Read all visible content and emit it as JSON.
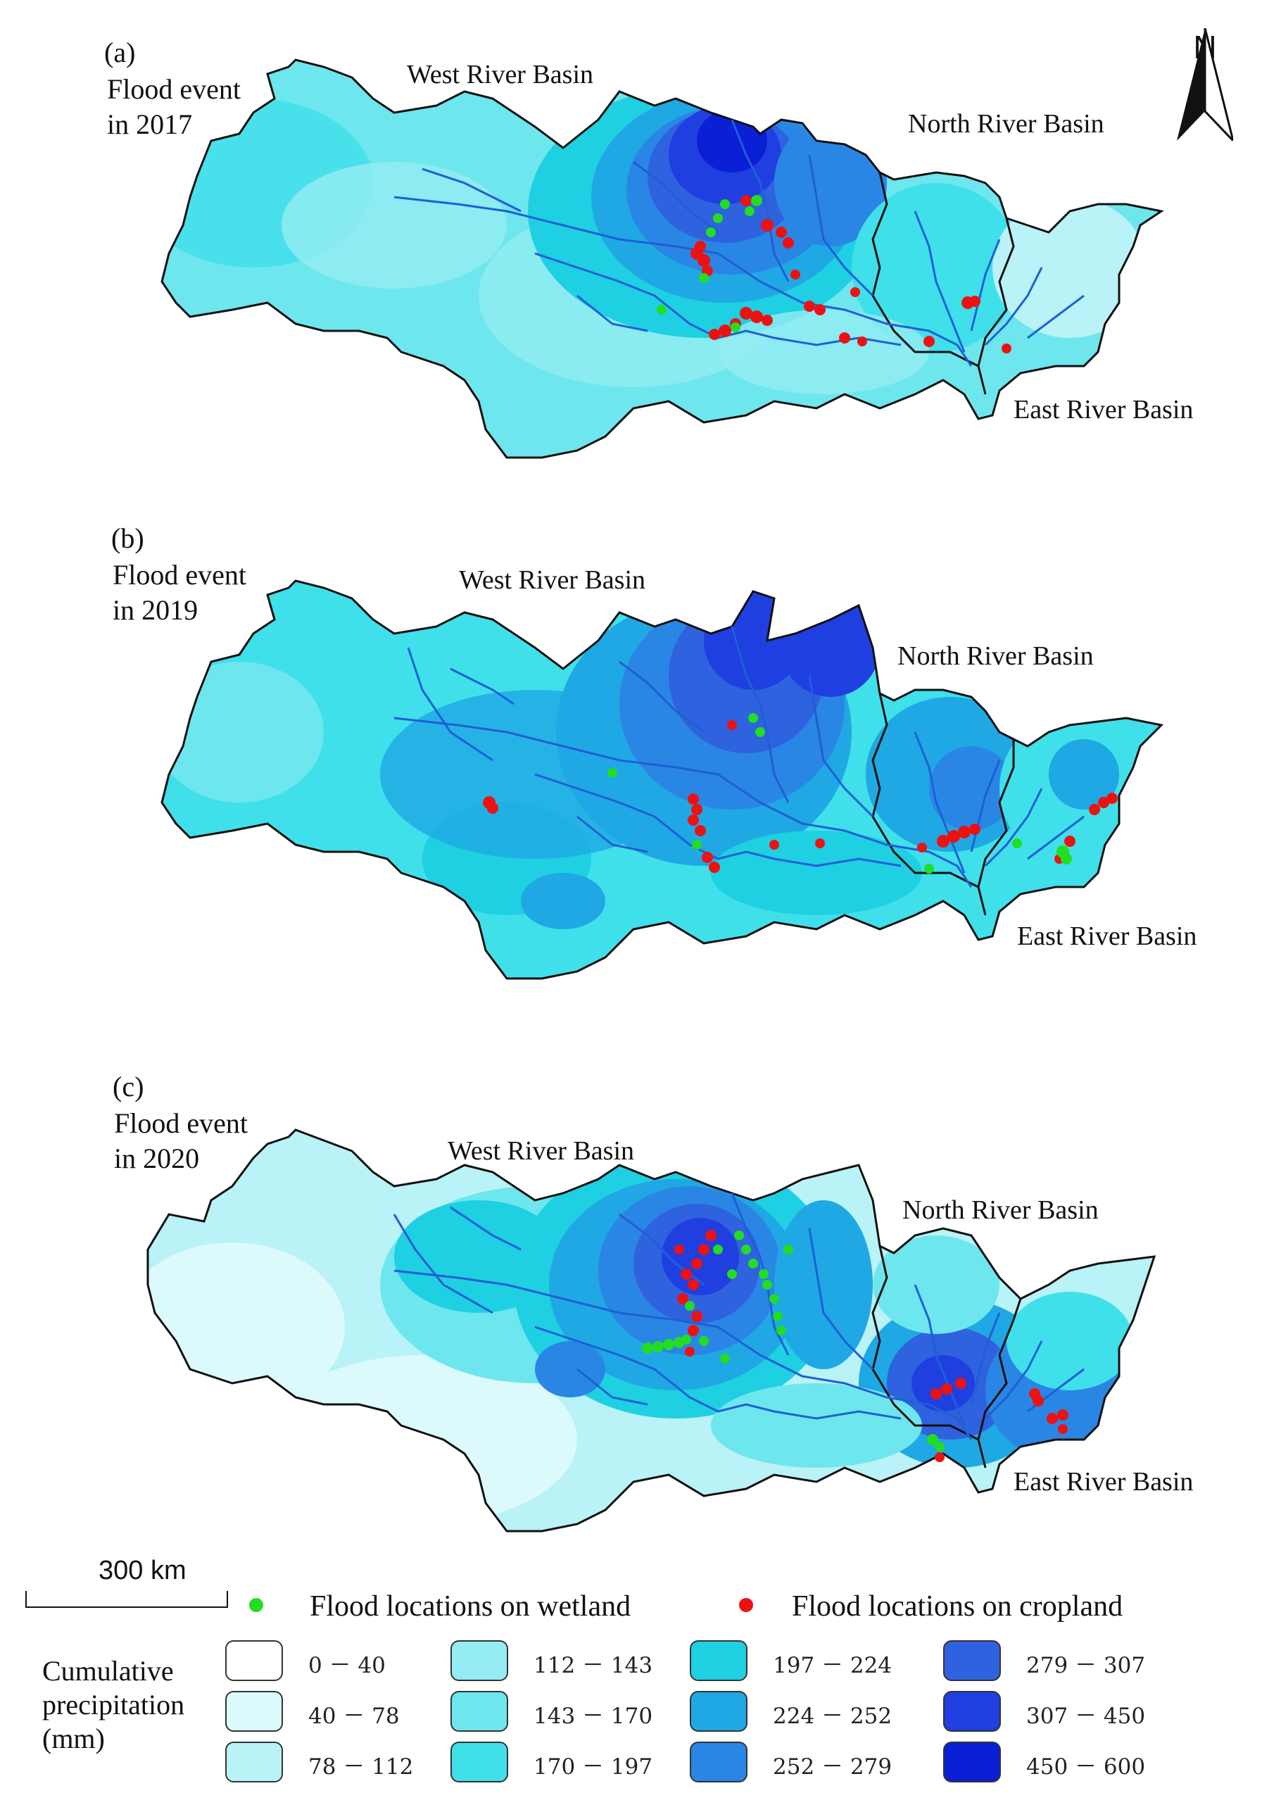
{
  "panels": [
    {
      "letter": "(a)",
      "event_line1": "Flood event",
      "event_line2": "in 2017",
      "west": "West River Basin",
      "north": "North River Basin",
      "east": "East River Basin"
    },
    {
      "letter": "(b)",
      "event_line1": "Flood event",
      "event_line2": "in 2019",
      "west": "West River Basin",
      "north": "North River Basin",
      "east": "East River Basin"
    },
    {
      "letter": "(c)",
      "event_line1": "Flood event",
      "event_line2": "in 2020",
      "west": "West River Basin",
      "north": "North River Basin",
      "east": "East River Basin"
    }
  ],
  "north_arrow": {
    "label": "N",
    "icon": "north-arrow-icon"
  },
  "scale_bar": {
    "label": "300 km"
  },
  "legend": {
    "wetland": "Flood locations on wetland",
    "cropland": "Flood locations on cropland",
    "wetland_color": "#22dd22",
    "cropland_color": "#ee1111",
    "title_line1": "Cumulative",
    "title_line2": "precipitation",
    "title_line3": "(mm)",
    "classes": [
      {
        "label": "0 － 40",
        "color": "#ffffff"
      },
      {
        "label": "40 － 78",
        "color": "#dcfafc"
      },
      {
        "label": "78 － 112",
        "color": "#b9f2f7"
      },
      {
        "label": "112 － 143",
        "color": "#95ecf2"
      },
      {
        "label": "143 － 170",
        "color": "#6ee6ee"
      },
      {
        "label": "170 － 197",
        "color": "#3fe0ea"
      },
      {
        "label": "197 － 224",
        "color": "#1fcfe2"
      },
      {
        "label": "224 － 252",
        "color": "#1fa8e4"
      },
      {
        "label": "252 － 279",
        "color": "#2a86e4"
      },
      {
        "label": "279 － 307",
        "color": "#2f62de"
      },
      {
        "label": "307 － 450",
        "color": "#1f3fe0"
      },
      {
        "label": "450 － 600",
        "color": "#0b1fd6"
      }
    ]
  }
}
